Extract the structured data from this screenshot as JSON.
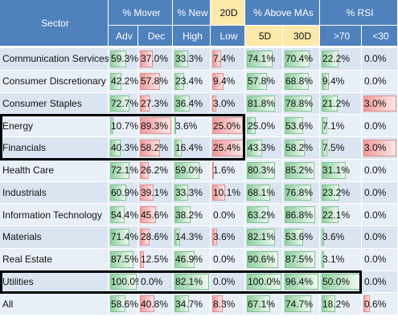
{
  "header": {
    "sector": "Sector",
    "groups": [
      "% Mover",
      "% New",
      "20D",
      "% Above MAs",
      "% RSI"
    ],
    "columns": [
      "Adv",
      "Dec",
      "High",
      "Low",
      "5D",
      "30D",
      ">70",
      "<30"
    ]
  },
  "rows": [
    {
      "sector": "Communication Services",
      "cells": [
        "59.3%",
        "37.0%",
        "33.3%",
        "7.4%",
        "74.1%",
        "70.4%",
        "22.2%",
        "0.0%"
      ]
    },
    {
      "sector": "Consumer Discretionary",
      "cells": [
        "42.2%",
        "57.8%",
        "23.4%",
        "9.4%",
        "57.8%",
        "68.8%",
        "9.4%",
        "0.0%"
      ]
    },
    {
      "sector": "Consumer Staples",
      "cells": [
        "72.7%",
        "27.3%",
        "36.4%",
        "3.0%",
        "81.8%",
        "78.8%",
        "21.2%",
        "3.0%"
      ]
    },
    {
      "sector": "Energy",
      "cells": [
        "10.7%",
        "89.3%",
        "3.6%",
        "25.0%",
        "25.0%",
        "53.6%",
        "7.1%",
        "0.0%"
      ]
    },
    {
      "sector": "Financials",
      "cells": [
        "40.3%",
        "58.2%",
        "16.4%",
        "25.4%",
        "43.3%",
        "58.2%",
        "7.5%",
        "3.0%"
      ]
    },
    {
      "sector": "Health Care",
      "cells": [
        "72.1%",
        "26.2%",
        "59.0%",
        "1.6%",
        "80.3%",
        "85.2%",
        "31.1%",
        "0.0%"
      ]
    },
    {
      "sector": "Industrials",
      "cells": [
        "60.9%",
        "39.1%",
        "33.3%",
        "10.1%",
        "68.1%",
        "76.8%",
        "23.2%",
        "0.0%"
      ]
    },
    {
      "sector": "Information Technology",
      "cells": [
        "54.4%",
        "45.6%",
        "38.2%",
        "0.0%",
        "63.2%",
        "86.8%",
        "22.1%",
        "0.0%"
      ]
    },
    {
      "sector": "Materials",
      "cells": [
        "71.4%",
        "28.6%",
        "14.3%",
        "3.6%",
        "82.1%",
        "53.6%",
        "3.6%",
        "0.0%"
      ]
    },
    {
      "sector": "Real Estate",
      "cells": [
        "87.5%",
        "12.5%",
        "46.9%",
        "0.0%",
        "90.6%",
        "87.5%",
        "3.1%",
        "0.0%"
      ]
    },
    {
      "sector": "Utilities",
      "cells": [
        "100.0%",
        "0.0%",
        "82.1%",
        "0.0%",
        "100.0%",
        "96.4%",
        "50.0%",
        "0.0%"
      ]
    },
    {
      "sector": "All",
      "cells": [
        "58.6%",
        "40.8%",
        "34.7%",
        "8.3%",
        "67.1%",
        "74.7%",
        "18.2%",
        "0.6%"
      ]
    }
  ]
}
